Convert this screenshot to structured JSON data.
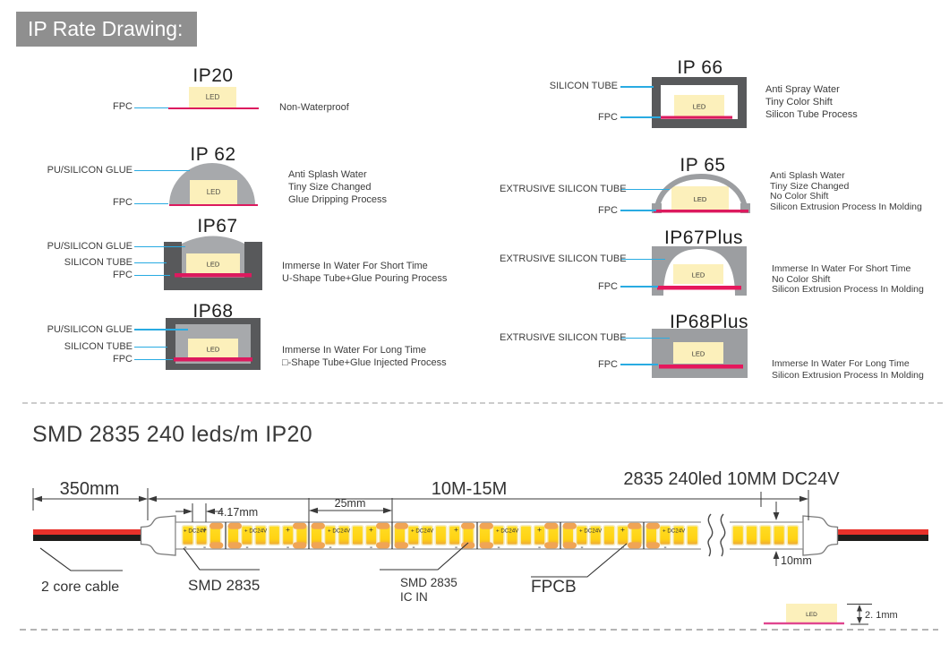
{
  "header": {
    "badge": "IP Rate Drawing:"
  },
  "led_label": "LED",
  "ip_diagrams": {
    "ip20": {
      "title": "IP20",
      "labels": {
        "fpc": "FPC"
      },
      "desc": [
        "Non-Waterproof"
      ]
    },
    "ip62": {
      "title": "IP 62",
      "labels": {
        "glue": "PU/SILICON GLUE",
        "fpc": "FPC"
      },
      "desc": [
        "Anti Splash Water",
        "Tiny Size Changed",
        "Glue Dripping Process"
      ]
    },
    "ip67": {
      "title": "IP67",
      "labels": {
        "glue": "PU/SILICON GLUE",
        "tube": "SILICON TUBE",
        "fpc": "FPC"
      },
      "desc": [
        "Immerse In Water For Short Time",
        "U-Shape Tube+Glue Pouring Process"
      ]
    },
    "ip68": {
      "title": "IP68",
      "labels": {
        "glue": "PU/SILICON GLUE",
        "tube": "SILICON TUBE",
        "fpc": "FPC"
      },
      "desc": [
        "Immerse In Water For Long Time",
        "□-Shape Tube+Glue Injected Process"
      ]
    },
    "ip66": {
      "title": "IP 66",
      "labels": {
        "tube": "SILICON TUBE",
        "fpc": "FPC"
      },
      "desc": [
        "Anti Spray Water",
        "Tiny Color Shift",
        "Silicon Tube Process"
      ]
    },
    "ip65": {
      "title": "IP 65",
      "labels": {
        "tube": "EXTRUSIVE SILICON TUBE",
        "fpc": "FPC"
      },
      "desc": [
        "Anti Splash Water",
        "Tiny Size Changed",
        "No Color Shift",
        "Silicon Extrusion Process In Molding"
      ]
    },
    "ip67plus": {
      "title": "IP67Plus",
      "labels": {
        "tube": "EXTRUSIVE SILICON TUBE",
        "fpc": "FPC"
      },
      "desc": [
        "Immerse In Water For Short Time",
        "No Color Shift",
        "Silicon Extrusion Process In Molding"
      ]
    },
    "ip68plus": {
      "title": "IP68Plus",
      "labels": {
        "tube": "EXTRUSIVE SILICON TUBE",
        "fpc": "FPC"
      },
      "desc": [
        "Immerse In Water For Long Time",
        "Silicon Extrusion Process In Molding"
      ]
    }
  },
  "strip_section": {
    "title": "SMD 2835 240 leds/m IP20",
    "spec_label": "2835 240led 10MM DC24V",
    "dimensions": {
      "lead_cable": "350mm",
      "strip_length": "10M-15M",
      "led_pitch": "4.17mm",
      "cut_unit": "25mm",
      "strip_width": "10mm",
      "strip_height": "2. 1mm"
    },
    "callouts": {
      "cable": "2 core cable",
      "led_chip": "SMD 2835",
      "ic_chip_line1": "SMD 2835",
      "ic_chip_line2": "IC IN",
      "fpcb": "FPCB"
    },
    "strip_markings": {
      "plus": "+",
      "minus": "-",
      "voltage": "DC24V"
    },
    "side_view_led": "LED"
  },
  "colors": {
    "accent_cyan": "#29abe2",
    "fpc_red": "#dc1a5e",
    "led_cream": "#fcf0bb",
    "tube_dark": "#58595b",
    "tube_light": "#a7a9ac",
    "tube_plus_gray": "#9c9ea1",
    "pad_orange": "#f0a455",
    "chip_yellow": "#ffd60e",
    "wire_red": "#e8312a",
    "wire_black": "#1d1d1b",
    "badge_gray": "#8f8f8f"
  }
}
